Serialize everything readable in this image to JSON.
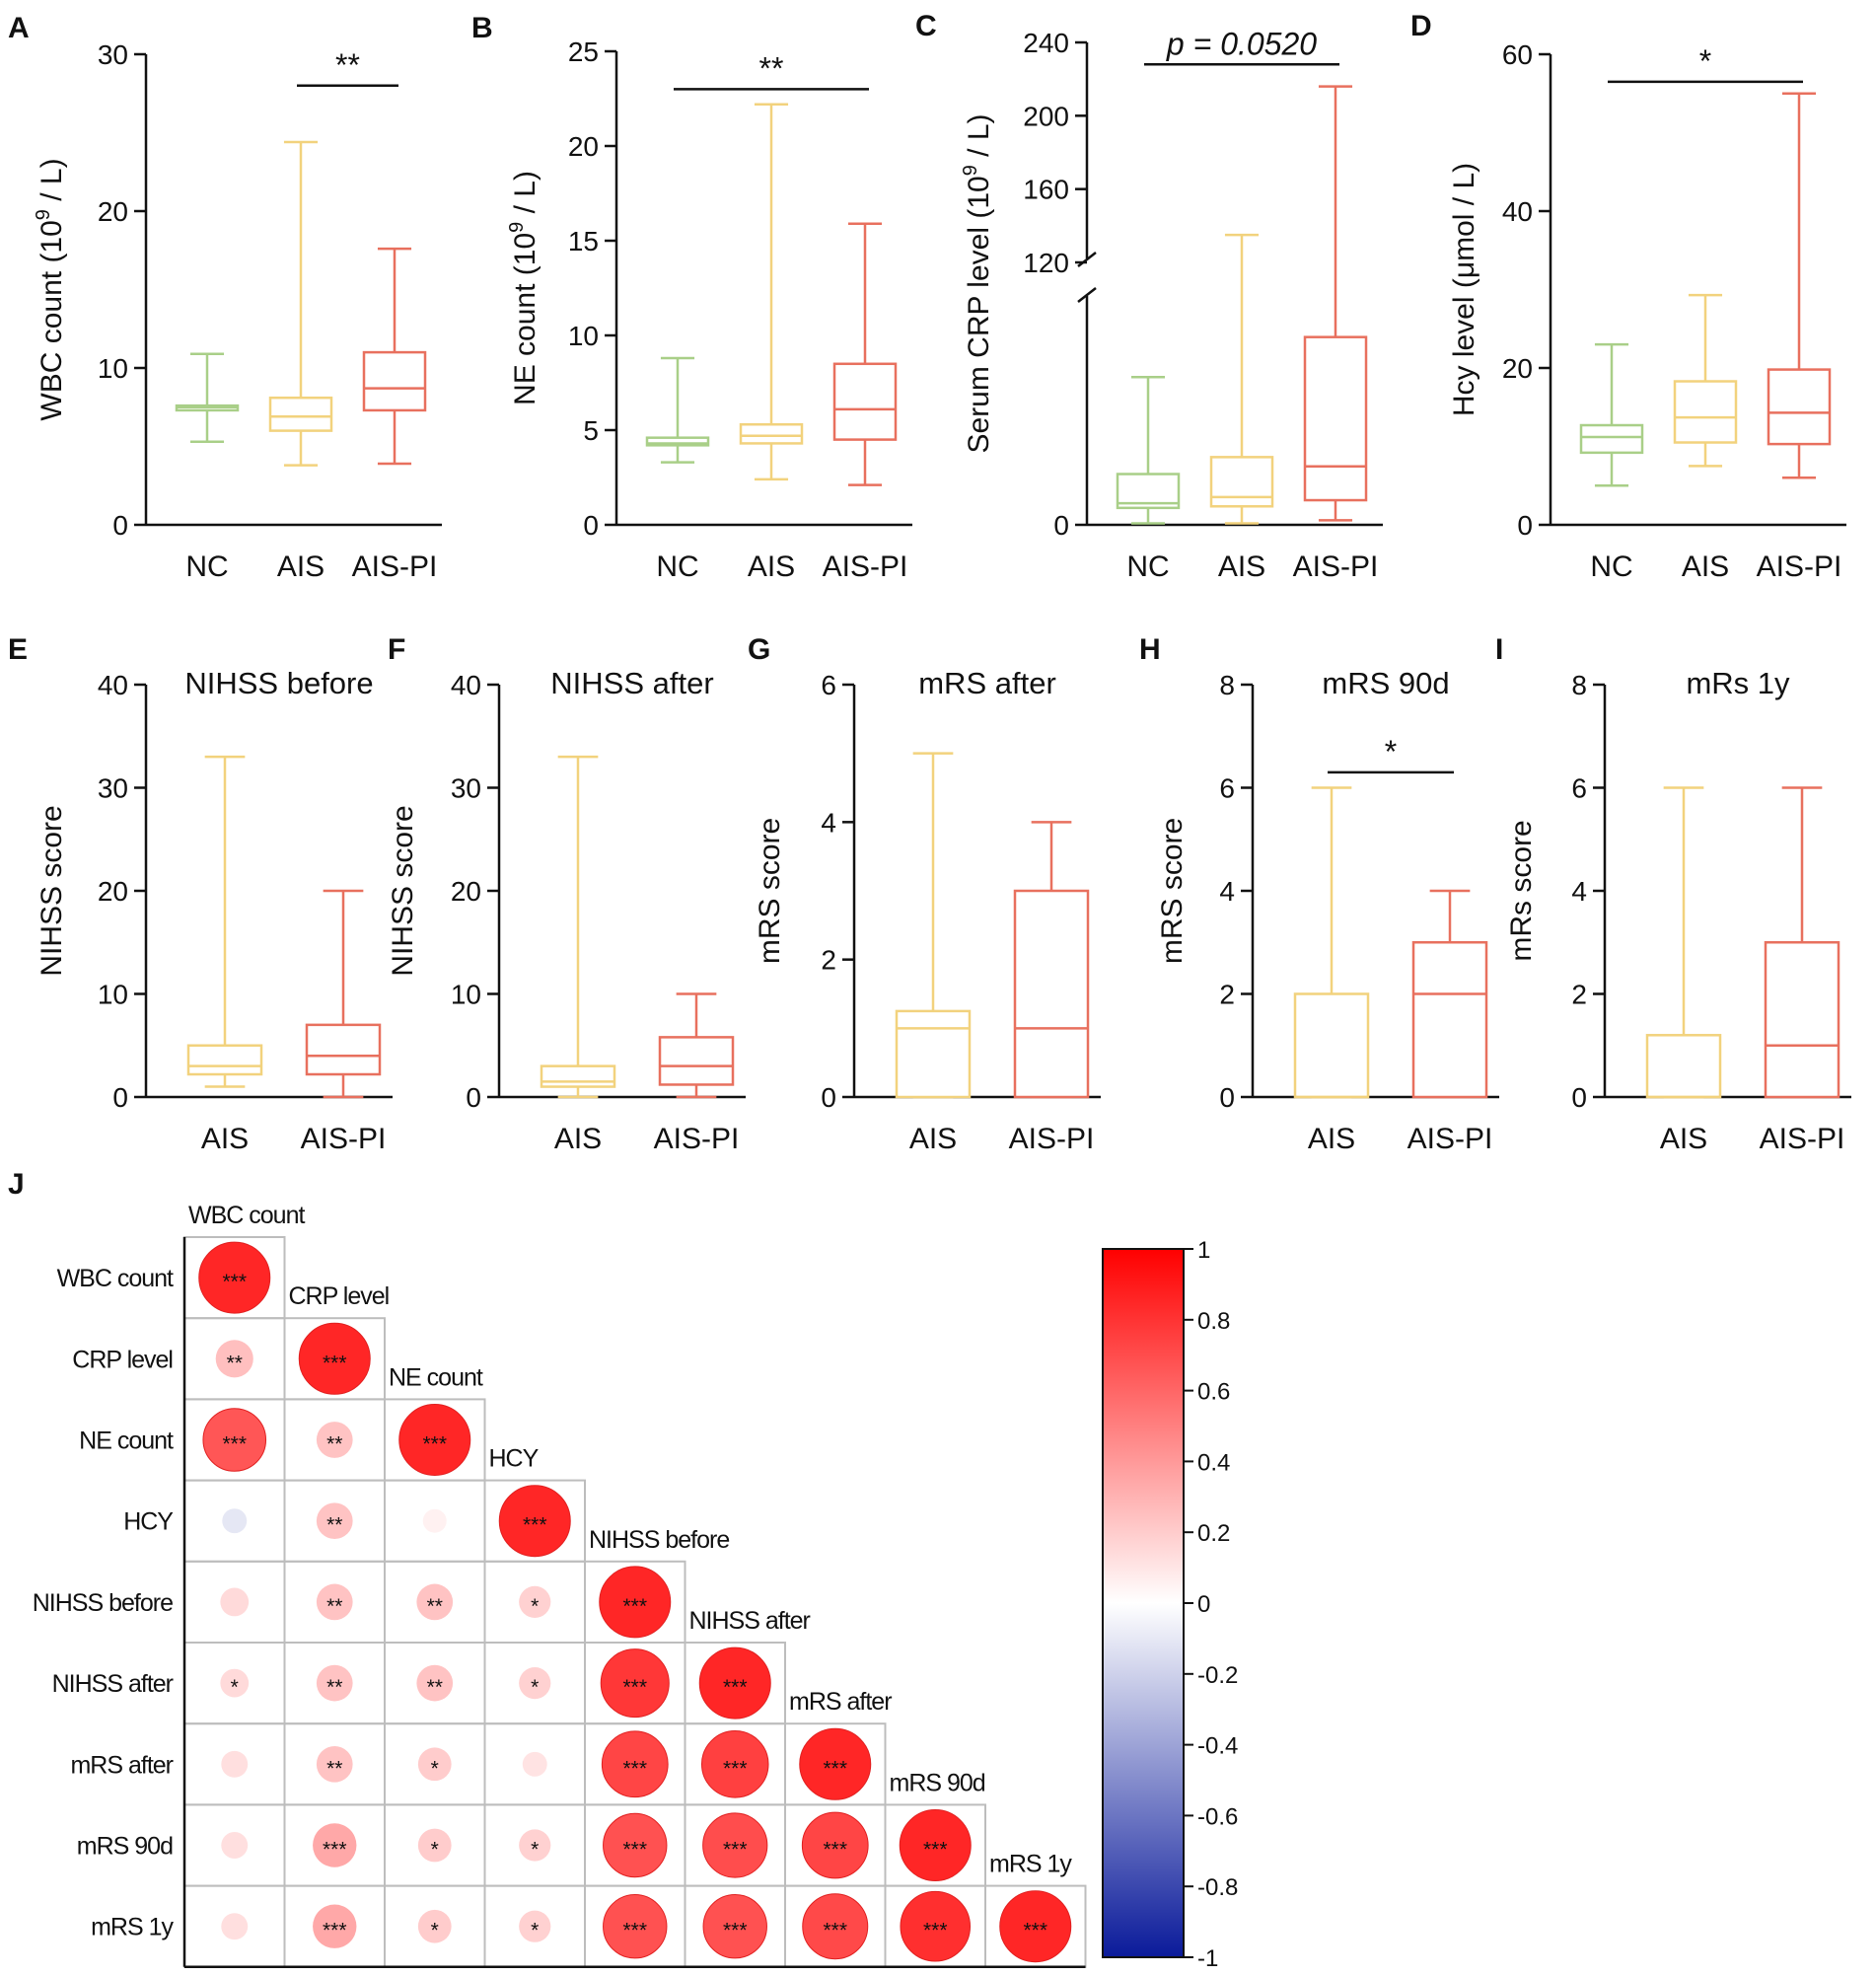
{
  "colors": {
    "NC": "#a9cf88",
    "AIS": "#f2d27d",
    "AIS-PI": "#e8705e",
    "axis": "#111111",
    "grid": "#bdbdbd",
    "positive": "#ff0000",
    "negative": "#0a1a9a"
  },
  "chart_data": [
    {
      "id": "A",
      "panel_label": "A",
      "type": "box",
      "title": "",
      "ylabel": "WBC count (10^9 / L)",
      "ylabel_main": "WBC count (10",
      "ylabel_sup": "9",
      "ylabel_tail": " / L)",
      "ylim": [
        0,
        30
      ],
      "yticks": [
        0,
        10,
        20,
        30
      ],
      "ytick_labels": [
        "0",
        "10",
        "20",
        "30"
      ],
      "categories": [
        "NC",
        "AIS",
        "AIS-PI"
      ],
      "boxes": [
        {
          "group": "NC",
          "min": 5.3,
          "q1": 7.3,
          "median": 7.5,
          "q3": 7.6,
          "max": 10.9
        },
        {
          "group": "AIS",
          "min": 3.8,
          "q1": 6.0,
          "median": 6.9,
          "q3": 8.1,
          "max": 24.4
        },
        {
          "group": "AIS-PI",
          "min": 3.9,
          "q1": 7.3,
          "median": 8.7,
          "q3": 11.0,
          "max": 17.6
        }
      ],
      "significance": [
        {
          "from": "AIS",
          "to": "AIS-PI",
          "label": "**",
          "italic": false,
          "y": 28.0
        }
      ]
    },
    {
      "id": "B",
      "panel_label": "B",
      "type": "box",
      "title": "",
      "ylabel": "NE count (10^9 / L)",
      "ylabel_main": "NE count (10",
      "ylabel_sup": "9",
      "ylabel_tail": " / L)",
      "ylim": [
        0,
        25
      ],
      "yticks": [
        0,
        5,
        10,
        15,
        20,
        25
      ],
      "ytick_labels": [
        "0",
        "5",
        "10",
        "15",
        "20",
        "25"
      ],
      "categories": [
        "NC",
        "AIS",
        "AIS-PI"
      ],
      "boxes": [
        {
          "group": "NC",
          "min": 3.3,
          "q1": 4.2,
          "median": 4.3,
          "q3": 4.6,
          "max": 8.8
        },
        {
          "group": "AIS",
          "min": 2.4,
          "q1": 4.3,
          "median": 4.7,
          "q3": 5.3,
          "max": 22.2
        },
        {
          "group": "AIS-PI",
          "min": 2.1,
          "q1": 4.5,
          "median": 6.1,
          "q3": 8.5,
          "max": 15.9
        }
      ],
      "significance": [
        {
          "from": "NC",
          "to": "AIS-PI",
          "label": "**",
          "italic": false,
          "y": 23.0
        }
      ]
    },
    {
      "id": "C",
      "panel_label": "C",
      "type": "box",
      "title": "",
      "ylabel": "Serum CRP level (10^9 / L)",
      "ylabel_main": "Serum CRP level (10",
      "ylabel_sup": "9",
      "ylabel_tail": " / L)",
      "y_break": {
        "lower": [
          0,
          75
        ],
        "upper": [
          120,
          240
        ]
      },
      "yticks": [
        0,
        120,
        160,
        200,
        240
      ],
      "ytick_labels": [
        "0",
        "120",
        "160",
        "200",
        "240"
      ],
      "categories": [
        "NC",
        "AIS",
        "AIS-PI"
      ],
      "boxes": [
        {
          "group": "NC",
          "min": 0.5,
          "q1": 5.5,
          "median": 7.0,
          "q3": 16.5,
          "max": 48.0
        },
        {
          "group": "AIS",
          "min": 0.5,
          "q1": 6.0,
          "median": 9.0,
          "q3": 22.0,
          "max": 135.0
        },
        {
          "group": "AIS-PI",
          "min": 1.5,
          "q1": 8.0,
          "median": 19.0,
          "q3": 61.0,
          "max": 216.0
        }
      ],
      "significance": [
        {
          "from": "NC",
          "to": "AIS-PI",
          "label": "p = 0.0520",
          "italic": true,
          "y": 228.0
        }
      ]
    },
    {
      "id": "D",
      "panel_label": "D",
      "type": "box",
      "title": "",
      "ylabel": "Hcy level (μmol / L)",
      "ylabel_main": "Hcy level (μmol / L)",
      "ylabel_sup": "",
      "ylabel_tail": "",
      "ylim": [
        0,
        60
      ],
      "yticks": [
        0,
        20,
        40,
        60
      ],
      "ytick_labels": [
        "0",
        "20",
        "40",
        "60"
      ],
      "categories": [
        "NC",
        "AIS",
        "AIS-PI"
      ],
      "boxes": [
        {
          "group": "NC",
          "min": 5.0,
          "q1": 9.2,
          "median": 11.2,
          "q3": 12.7,
          "max": 23.0
        },
        {
          "group": "AIS",
          "min": 7.5,
          "q1": 10.5,
          "median": 13.7,
          "q3": 18.3,
          "max": 29.3
        },
        {
          "group": "AIS-PI",
          "min": 6.0,
          "q1": 10.3,
          "median": 14.3,
          "q3": 19.8,
          "max": 55.0
        }
      ],
      "significance": [
        {
          "from": "NC",
          "to": "AIS-PI",
          "label": "*",
          "italic": false,
          "y": 56.5
        }
      ]
    },
    {
      "id": "E",
      "panel_label": "E",
      "type": "box",
      "title": "NIHSS before",
      "ylabel": "NIHSS score",
      "ylabel_main": "NIHSS score",
      "ylabel_sup": "",
      "ylabel_tail": "",
      "ylim": [
        0,
        40
      ],
      "yticks": [
        0,
        10,
        20,
        30,
        40
      ],
      "ytick_labels": [
        "0",
        "10",
        "20",
        "30",
        "40"
      ],
      "categories": [
        "AIS",
        "AIS-PI"
      ],
      "boxes": [
        {
          "group": "AIS",
          "min": 1.0,
          "q1": 2.2,
          "median": 3.0,
          "q3": 5.0,
          "max": 33.0
        },
        {
          "group": "AIS-PI",
          "min": 0.0,
          "q1": 2.2,
          "median": 4.0,
          "q3": 7.0,
          "max": 20.0
        }
      ],
      "significance": []
    },
    {
      "id": "F",
      "panel_label": "F",
      "type": "box",
      "title": "NIHSS after",
      "ylabel": "NIHSS score",
      "ylabel_main": "NIHSS score",
      "ylabel_sup": "",
      "ylabel_tail": "",
      "ylim": [
        0,
        40
      ],
      "yticks": [
        0,
        10,
        20,
        30,
        40
      ],
      "ytick_labels": [
        "0",
        "10",
        "20",
        "30",
        "40"
      ],
      "categories": [
        "AIS",
        "AIS-PI"
      ],
      "boxes": [
        {
          "group": "AIS",
          "min": 0.0,
          "q1": 1.0,
          "median": 1.5,
          "q3": 3.0,
          "max": 33.0
        },
        {
          "group": "AIS-PI",
          "min": 0.0,
          "q1": 1.2,
          "median": 3.0,
          "q3": 5.8,
          "max": 10.0
        }
      ],
      "significance": []
    },
    {
      "id": "G",
      "panel_label": "G",
      "type": "box",
      "title": "mRS after",
      "ylabel": "mRS score",
      "ylabel_main": "mRS score",
      "ylabel_sup": "",
      "ylabel_tail": "",
      "ylim": [
        0,
        6
      ],
      "yticks": [
        0,
        2,
        4,
        6
      ],
      "ytick_labels": [
        "0",
        "2",
        "4",
        "6"
      ],
      "categories": [
        "AIS",
        "AIS-PI"
      ],
      "boxes": [
        {
          "group": "AIS",
          "min": 0.0,
          "q1": 0.0,
          "median": 1.0,
          "q3": 1.25,
          "max": 5.0
        },
        {
          "group": "AIS-PI",
          "min": 0.0,
          "q1": 0.0,
          "median": 1.0,
          "q3": 3.0,
          "max": 4.0
        }
      ],
      "significance": []
    },
    {
      "id": "H",
      "panel_label": "H",
      "type": "box",
      "title": "mRS 90d",
      "ylabel": "mRS score",
      "ylabel_main": "mRS score",
      "ylabel_sup": "",
      "ylabel_tail": "",
      "ylim": [
        0,
        8
      ],
      "yticks": [
        0,
        2,
        4,
        6,
        8
      ],
      "ytick_labels": [
        "0",
        "2",
        "4",
        "6",
        "8"
      ],
      "categories": [
        "AIS",
        "AIS-PI"
      ],
      "boxes": [
        {
          "group": "AIS",
          "min": 0.0,
          "q1": 0.0,
          "median": 0.0,
          "q3": 2.0,
          "max": 6.0
        },
        {
          "group": "AIS-PI",
          "min": 0.0,
          "q1": 0.0,
          "median": 2.0,
          "q3": 3.0,
          "max": 4.0
        }
      ],
      "significance": [
        {
          "from": "AIS",
          "to": "AIS-PI",
          "label": "*",
          "italic": false,
          "y": 6.3
        }
      ]
    },
    {
      "id": "I",
      "panel_label": "I",
      "type": "box",
      "title": "mRs 1y",
      "ylabel": "mRs score",
      "ylabel_main": "mRs score",
      "ylabel_sup": "",
      "ylabel_tail": "",
      "ylim": [
        0,
        8
      ],
      "yticks": [
        0,
        2,
        4,
        6,
        8
      ],
      "ytick_labels": [
        "0",
        "2",
        "4",
        "6",
        "8"
      ],
      "categories": [
        "AIS",
        "AIS-PI"
      ],
      "boxes": [
        {
          "group": "AIS",
          "min": 0.0,
          "q1": 0.0,
          "median": 0.0,
          "q3": 1.2,
          "max": 6.0
        },
        {
          "group": "AIS-PI",
          "min": 0.0,
          "q1": 0.0,
          "median": 1.0,
          "q3": 3.0,
          "max": 6.0
        }
      ],
      "significance": []
    },
    {
      "id": "J",
      "panel_label": "J",
      "type": "heatmap",
      "title": "",
      "variables": [
        "WBC count",
        "CRP level",
        "NE count",
        "HCY",
        "NIHSS before",
        "NIHSS after",
        "mRS after",
        "mRS 90d",
        "mRS 1y"
      ],
      "matrix": [
        [
          1.0,
          null,
          null,
          null,
          null,
          null,
          null,
          null,
          null
        ],
        [
          0.28,
          1.0,
          null,
          null,
          null,
          null,
          null,
          null,
          null
        ],
        [
          0.78,
          0.26,
          1.0,
          null,
          null,
          null,
          null,
          null,
          null
        ],
        [
          -0.12,
          0.26,
          0.06,
          1.0,
          null,
          null,
          null,
          null,
          null
        ],
        [
          0.16,
          0.26,
          0.26,
          0.2,
          1.0,
          null,
          null,
          null,
          null
        ],
        [
          0.16,
          0.26,
          0.26,
          0.2,
          0.92,
          1.0,
          null,
          null,
          null
        ],
        [
          0.14,
          0.26,
          0.22,
          0.12,
          0.86,
          0.88,
          1.0,
          null,
          null
        ],
        [
          0.14,
          0.38,
          0.22,
          0.2,
          0.8,
          0.82,
          0.86,
          1.0,
          null
        ],
        [
          0.14,
          0.38,
          0.22,
          0.2,
          0.8,
          0.8,
          0.84,
          0.96,
          1.0
        ]
      ],
      "stars": [
        [
          "***",
          "",
          "",
          "",
          "",
          "",
          "",
          "",
          ""
        ],
        [
          "**",
          "***",
          "",
          "",
          "",
          "",
          "",
          "",
          ""
        ],
        [
          "***",
          "**",
          "***",
          "",
          "",
          "",
          "",
          "",
          ""
        ],
        [
          "",
          "**",
          "",
          "***",
          "",
          "",
          "",
          "",
          ""
        ],
        [
          "",
          "**",
          "**",
          "*",
          "***",
          "",
          "",
          "",
          ""
        ],
        [
          "*",
          "**",
          "**",
          "*",
          "***",
          "***",
          "",
          "",
          ""
        ],
        [
          "",
          "**",
          "*",
          "",
          "***",
          "***",
          "***",
          "",
          ""
        ],
        [
          "",
          "***",
          "*",
          "*",
          "***",
          "***",
          "***",
          "***",
          ""
        ],
        [
          "",
          "***",
          "*",
          "*",
          "***",
          "***",
          "***",
          "***",
          "***"
        ]
      ],
      "colorbar": {
        "range": [
          -1,
          1
        ],
        "ticks": [
          1,
          0.8,
          0.6,
          0.4,
          0.2,
          0,
          -0.2,
          -0.4,
          -0.6,
          -0.8,
          -1
        ],
        "tick_labels": [
          "1",
          "0.8",
          "0.6",
          "0.4",
          "0.2",
          "0",
          "-0.2",
          "-0.4",
          "-0.6",
          "-0.8",
          "-1"
        ]
      }
    }
  ]
}
